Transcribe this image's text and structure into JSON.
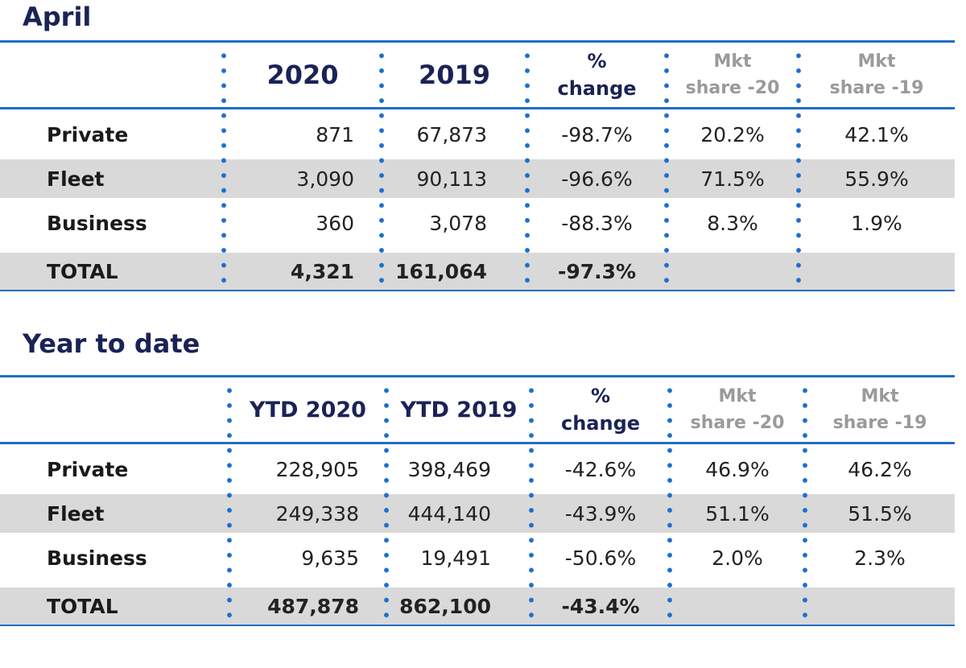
{
  "april": {
    "title": "April",
    "headers": [
      "2020",
      "2019",
      "%",
      "change",
      "Mkt",
      "share -20",
      "Mkt",
      "share -19"
    ],
    "rows": [
      {
        "label": "Private",
        "v2020": "871",
        "v2019": "67,873",
        "change": "-98.7%",
        "share20": "20.2%",
        "share19": "42.1%"
      },
      {
        "label": "Fleet",
        "v2020": "3,090",
        "v2019": "90,113",
        "change": "-96.6%",
        "share20": "71.5%",
        "share19": "55.9%"
      },
      {
        "label": "Business",
        "v2020": "360",
        "v2019": "3,078",
        "change": "-88.3%",
        "share20": "8.3%",
        "share19": "1.9%"
      },
      {
        "label": "TOTAL",
        "v2020": "4,321",
        "v2019": "161,064",
        "change": "-97.3%",
        "share20": "",
        "share19": ""
      }
    ]
  },
  "ytd": {
    "title": "Year to date",
    "headers": [
      "YTD 2020",
      "YTD 2019",
      "%",
      "change",
      "Mkt",
      "share -20",
      "Mkt",
      "share -19"
    ],
    "rows": [
      {
        "label": "Private",
        "v2020": "228,905",
        "v2019": "398,469",
        "change": "-42.6%",
        "share20": "46.9%",
        "share19": "46.2%"
      },
      {
        "label": "Fleet",
        "v2020": "249,338",
        "v2019": "444,140",
        "change": "-43.9%",
        "share20": "51.1%",
        "share19": "51.5%"
      },
      {
        "label": "Business",
        "v2020": "9,635",
        "v2019": "19,491",
        "change": "-50.6%",
        "share20": "2.0%",
        "share19": "2.3%"
      },
      {
        "label": "TOTAL",
        "v2020": "487,878",
        "v2019": "862,100",
        "change": "-43.4%",
        "share20": "",
        "share19": ""
      }
    ]
  },
  "colors": {
    "accent": "#1f6fc6",
    "title": "#1a2356",
    "row_shade": "#d9d9d9",
    "muted": "#9a9a9a"
  }
}
